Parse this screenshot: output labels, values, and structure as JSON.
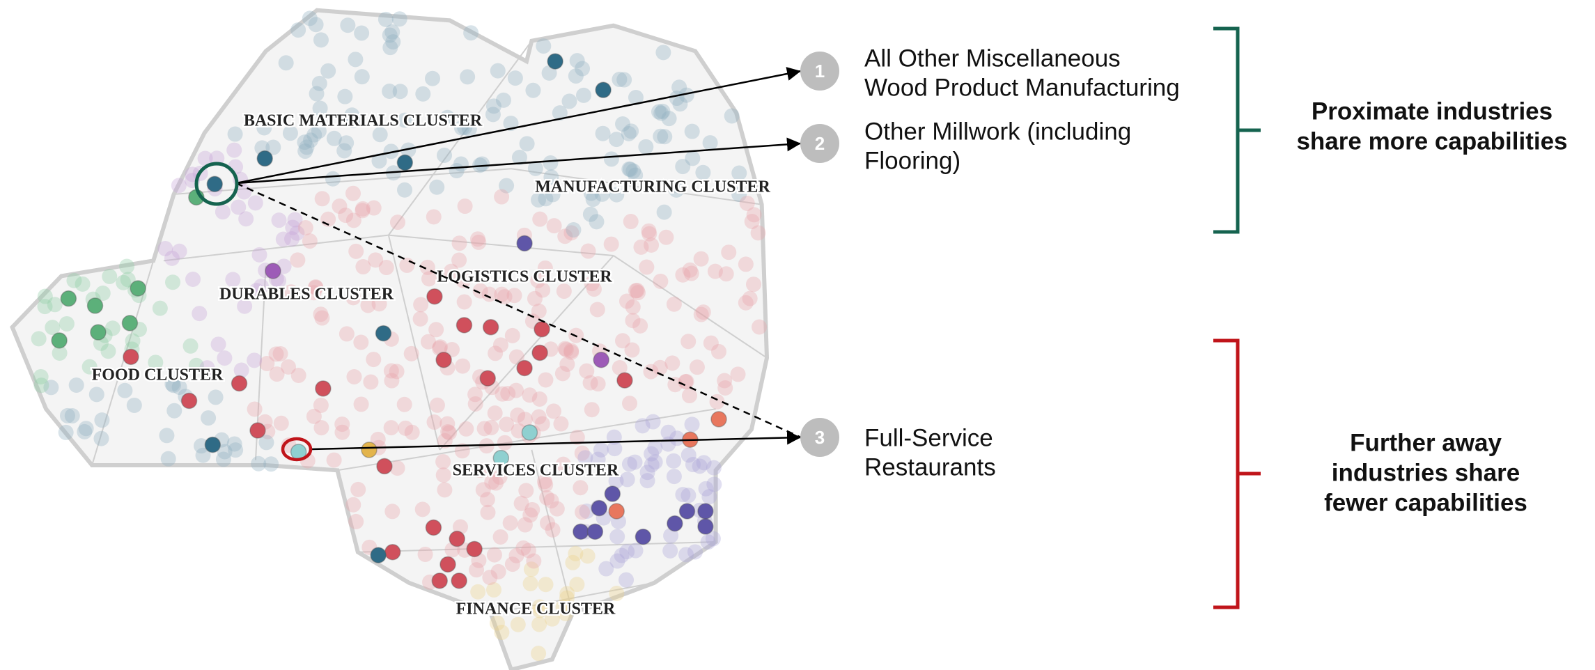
{
  "clusters": [
    "BASIC MATERIALS CLUSTER",
    "MANUFACTURING CLUSTER",
    "LOGISTICS CLUSTER",
    "DURABLES CLUSTER",
    "FOOD CLUSTER",
    "SERVICES CLUSTER",
    "FINANCE CLUSTER"
  ],
  "industries": [
    {
      "number": "1",
      "lines": [
        "All Other Miscellaneous",
        "Wood Product Manufacturing"
      ]
    },
    {
      "number": "2",
      "lines": [
        "Other Millwork (including",
        "Flooring)"
      ]
    },
    {
      "number": "3",
      "lines": [
        "Full-Service",
        "Restaurants"
      ]
    }
  ],
  "groups": [
    {
      "lines": [
        "Proximate industries",
        "share more capabilities"
      ]
    },
    {
      "lines": [
        "Further away",
        "industries share",
        "fewer capabilities"
      ]
    }
  ]
}
